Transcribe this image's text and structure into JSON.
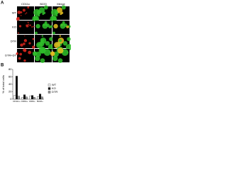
{
  "panel_a": {
    "label": "A",
    "columns": [
      "CD11c",
      "B220",
      "Merge"
    ],
    "rows": [
      "WT",
      "KO",
      "DTR",
      "DTR+DT"
    ]
  },
  "chart_data": {
    "type": "bar",
    "panel_label": "B",
    "y_label": "% of total cells",
    "categories": [
      "CD11c+",
      "CD8α+",
      "CD8α−",
      "B220+"
    ],
    "series": [
      {
        "name": "WT",
        "color": "#ffffff",
        "values": [
          10,
          5,
          8,
          7
        ]
      },
      {
        "name": "KO",
        "color": "#111111",
        "values": [
          62,
          12,
          10,
          14
        ]
      },
      {
        "name": "DTR",
        "color": "#9a9a9a",
        "values": [
          8,
          6,
          5,
          6
        ]
      }
    ],
    "ylim": [
      0,
      80
    ],
    "yticks": [
      0,
      20,
      40,
      60,
      80
    ]
  }
}
